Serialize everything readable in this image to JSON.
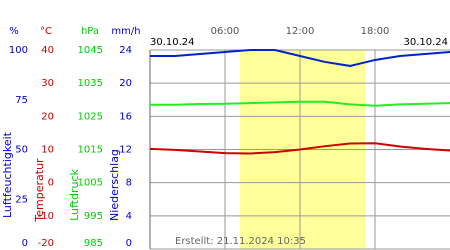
{
  "chart_data": {
    "type": "line",
    "date_left": "30.10.24",
    "date_right": "30.10.24",
    "created": "Erstellt: 21.11.2024 10:35",
    "xlim": [
      0,
      24
    ],
    "xticks": [
      {
        "value": 6,
        "label": "06:00"
      },
      {
        "value": 12,
        "label": "12:00"
      },
      {
        "value": 18,
        "label": "18:00"
      }
    ],
    "daylight": [
      7.2,
      17.2
    ],
    "axes": [
      {
        "unit": "%",
        "label": "Luftfeuchtigkeit",
        "color": "#0000cc",
        "ylim": [
          0,
          100
        ],
        "yticks": [
          0,
          25,
          50,
          75,
          100
        ]
      },
      {
        "unit": "°C",
        "label": "Temperatur",
        "color": "#cc0000",
        "ylim": [
          -20,
          40
        ],
        "yticks": [
          -20,
          -10,
          0,
          10,
          20,
          30,
          40
        ]
      },
      {
        "unit": "hPa",
        "label": "Luftdruck",
        "color": "#00cc00",
        "ylim": [
          985,
          1045
        ],
        "yticks": [
          985,
          995,
          1005,
          1015,
          1025,
          1035,
          1045
        ]
      },
      {
        "unit": "mm/h",
        "label": "Niederschlag",
        "color": "#0000cc",
        "ylim": [
          0,
          24
        ],
        "yticks": [
          0,
          4,
          8,
          12,
          16,
          20,
          24
        ]
      }
    ],
    "x": [
      0,
      2,
      4,
      6,
      8,
      10,
      12,
      14,
      16,
      18,
      20,
      22,
      24
    ],
    "series": [
      {
        "name": "Luftfeuchtigkeit",
        "axis": 0,
        "color": "#0022cc",
        "values": [
          97,
          97,
          98,
          99,
          100,
          100,
          97,
          94,
          92,
          95,
          97,
          98,
          99
        ]
      },
      {
        "name": "Luftdruck",
        "axis": 2,
        "color": "#22ee22",
        "values": [
          1028.5,
          1028.5,
          1028.7,
          1028.8,
          1029,
          1029.2,
          1029.4,
          1029.4,
          1028.6,
          1028.2,
          1028.6,
          1028.8,
          1029
        ]
      },
      {
        "name": "Temperatur",
        "axis": 1,
        "color": "#cc0000",
        "values": [
          10.2,
          9.9,
          9.4,
          8.9,
          8.8,
          9.2,
          10,
          11,
          11.8,
          11.9,
          10.9,
          10.2,
          9.7
        ]
      }
    ]
  }
}
